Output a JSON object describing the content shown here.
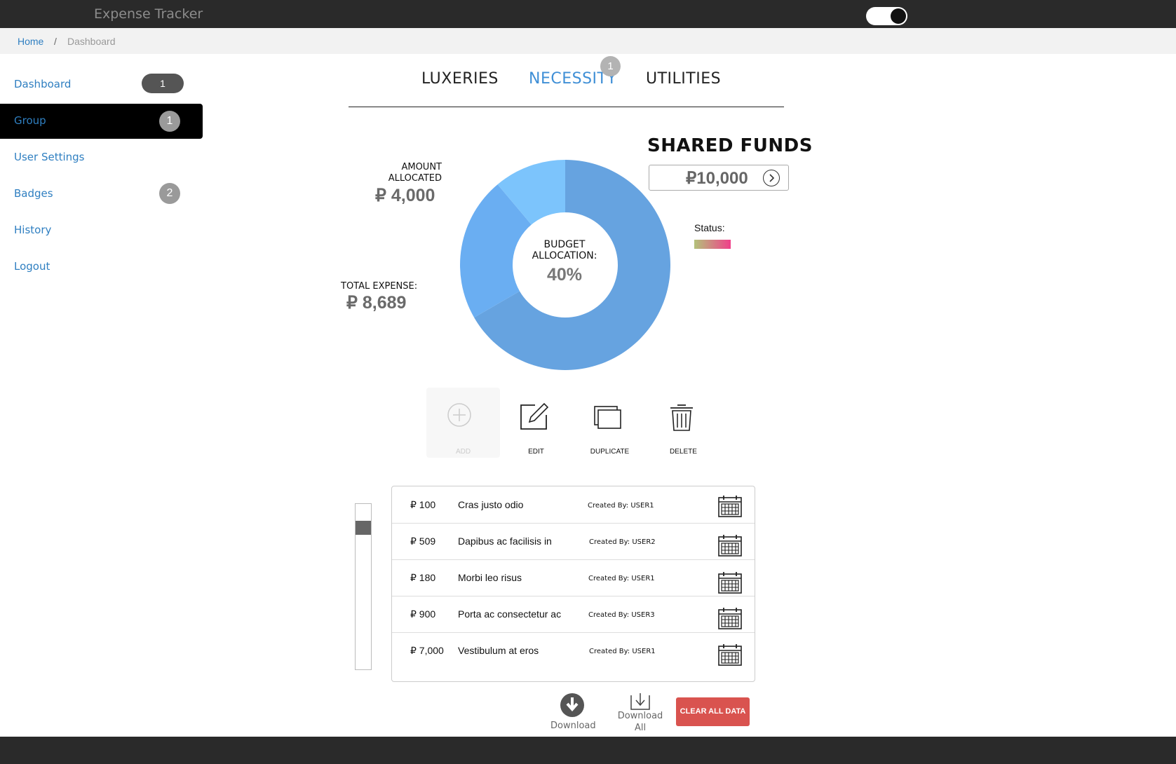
{
  "app": {
    "title": "Expense Tracker"
  },
  "breadcrumb": {
    "home": "Home",
    "separator": "/",
    "current": "Dashboard"
  },
  "sidebar": {
    "items": [
      {
        "label": "Dashboard",
        "badge": "1"
      },
      {
        "label": "Group",
        "badge": "1"
      },
      {
        "label": "User Settings"
      },
      {
        "label": "Badges",
        "badge": "2"
      },
      {
        "label": "History"
      },
      {
        "label": "Logout"
      }
    ]
  },
  "tabs": {
    "items": [
      {
        "label": "LUXERIES"
      },
      {
        "label": "NECESSITY"
      },
      {
        "label": "UTILITIES"
      }
    ],
    "active": "NECESSITY",
    "necessity_badge": "1"
  },
  "summary": {
    "amount_allocated_label_1": "AMOUNT",
    "amount_allocated_label_2": "ALLOCATED",
    "amount_allocated_value": "₽ 4,000",
    "total_expense_label": "TOTAL EXPENSE:",
    "total_expense_value": "₽ 8,689"
  },
  "donut": {
    "center_label_1": "BUDGET",
    "center_label_2": "ALLOCATION:",
    "center_value": "40%",
    "segments_pct": [
      60,
      20,
      10
    ],
    "colors": [
      "#66a3e0",
      "#6aaef2",
      "#7cc4fc"
    ]
  },
  "shared_funds": {
    "title": "SHARED FUNDS",
    "value": "₽10,000",
    "arrow_icon": "chevron-right-circle-icon"
  },
  "status": {
    "label": "Status:",
    "gradient": [
      "#b3c27a",
      "#f0408a"
    ]
  },
  "actions": [
    {
      "label": "ADD",
      "icon": "plus-circle-icon",
      "disabled": true
    },
    {
      "label": "EDIT",
      "icon": "edit-icon"
    },
    {
      "label": "DUPLICATE",
      "icon": "duplicate-icon"
    },
    {
      "label": "DELETE",
      "icon": "trash-icon"
    }
  ],
  "expenses": [
    {
      "amount": "₽ 100",
      "description": "Cras justo odio",
      "created_by": "Created By: USER1"
    },
    {
      "amount": "₽ 509",
      "description": "Dapibus ac facilisis in",
      "created_by": "Created By: USER2"
    },
    {
      "amount": "₽ 180",
      "description": "Morbi leo risus",
      "created_by": "Created By: USER1"
    },
    {
      "amount": "₽ 900",
      "description": "Porta ac consectetur ac",
      "created_by": "Created By: USER3"
    },
    {
      "amount": "₽ 7,000",
      "description": "Vestibulum at eros",
      "created_by": "Created By: USER1"
    }
  ],
  "footer_actions": {
    "download": "Download",
    "download_all_1": "Download",
    "download_all_2": "All",
    "clear": "CLEAR ALL DATA"
  },
  "theme": {
    "accent": "#3f8fd6",
    "link": "#2f7fc1",
    "danger": "#d9534f",
    "dark": "#2a2a2a"
  }
}
